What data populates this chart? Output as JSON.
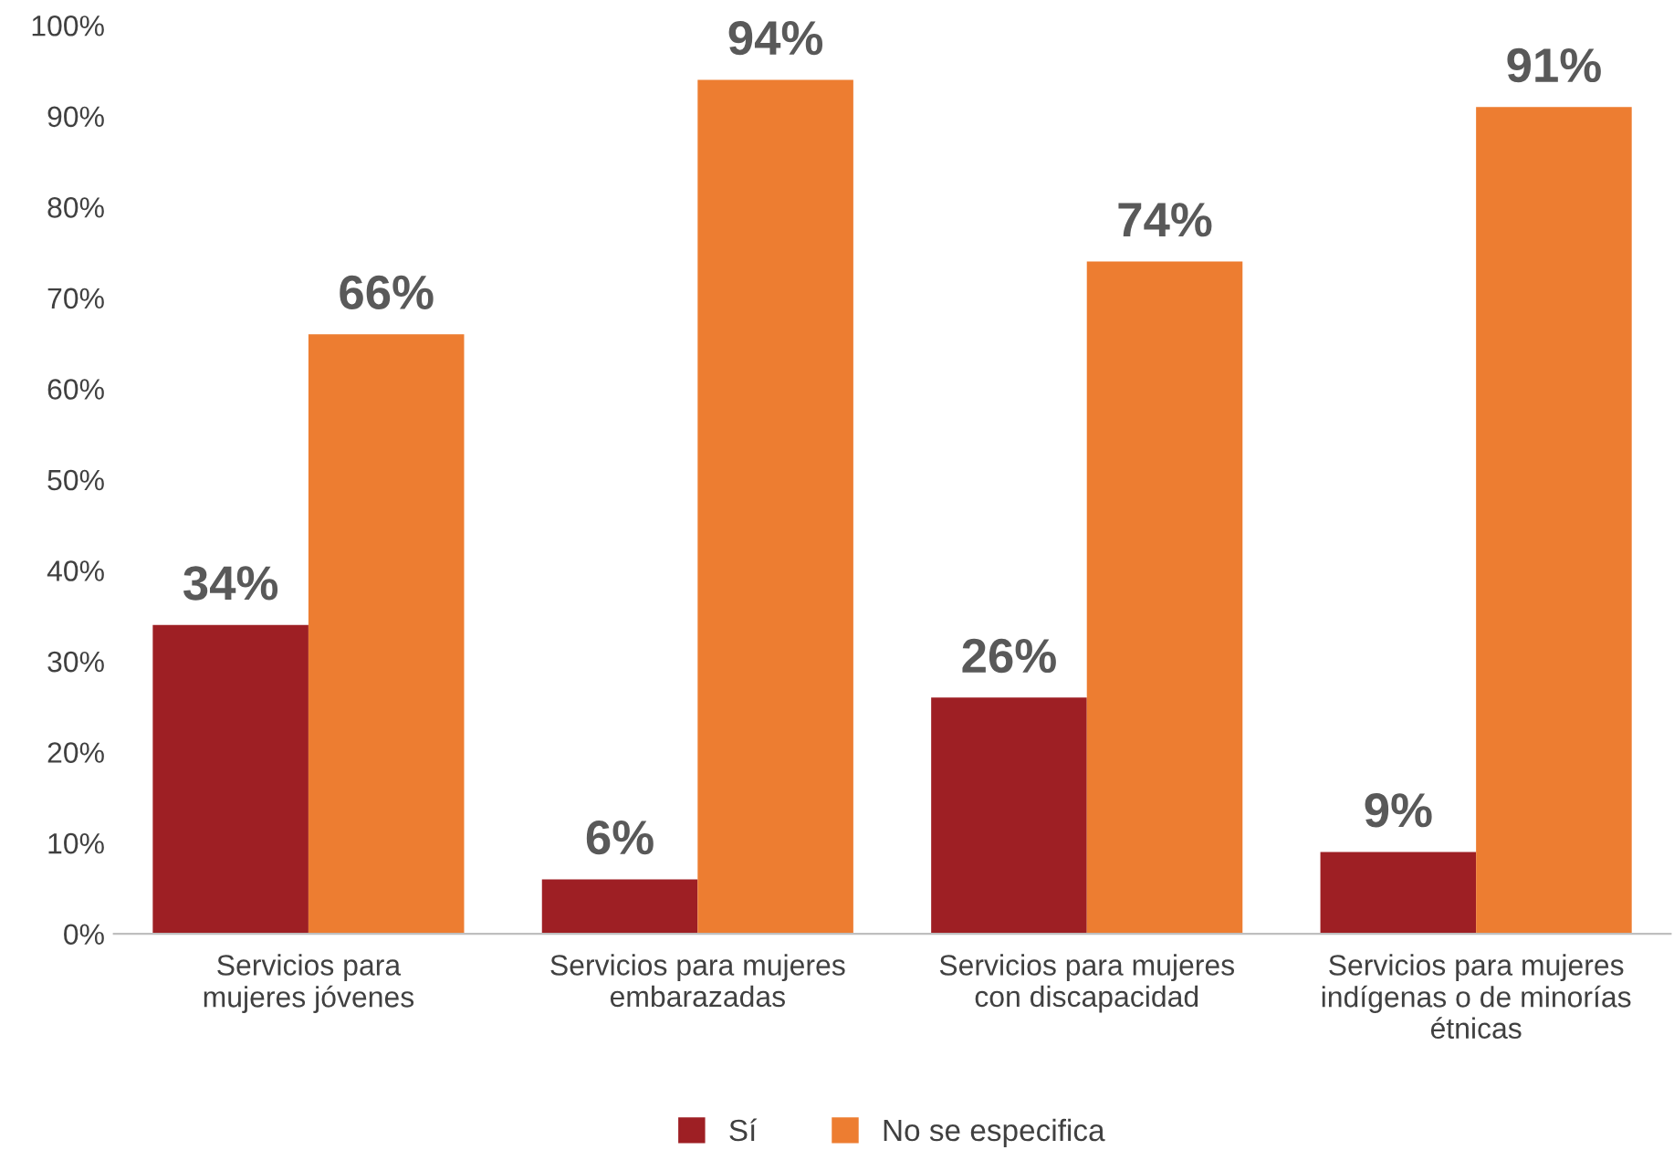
{
  "chart_data": {
    "type": "bar",
    "categories": [
      "Servicios para\nmujeres jóvenes",
      "Servicios para mujeres\nembarazadas",
      "Servicios para mujeres\ncon discapacidad",
      "Servicios para mujeres\nindígenas o de minorías\nétnicas"
    ],
    "series": [
      {
        "name": "Sí",
        "color": "#9e1f24",
        "values": [
          34,
          6,
          26,
          9
        ],
        "value_labels": [
          "34%",
          "6%",
          "26%",
          "9%"
        ]
      },
      {
        "name": "No se especifica",
        "color": "#ed7d31",
        "values": [
          66,
          94,
          74,
          91
        ],
        "value_labels": [
          "66%",
          "94%",
          "74%",
          "91%"
        ]
      }
    ],
    "ylim": [
      0,
      100
    ],
    "yticks": [
      {
        "value": 0,
        "label": "0%"
      },
      {
        "value": 10,
        "label": "10%"
      },
      {
        "value": 20,
        "label": "20%"
      },
      {
        "value": 30,
        "label": "30%"
      },
      {
        "value": 40,
        "label": "40%"
      },
      {
        "value": 50,
        "label": "50%"
      },
      {
        "value": 60,
        "label": "60%"
      },
      {
        "value": 70,
        "label": "70%"
      },
      {
        "value": 80,
        "label": "80%"
      },
      {
        "value": 90,
        "label": "90%"
      },
      {
        "value": 100,
        "label": "100%"
      }
    ],
    "grid": false,
    "legend": "bottom"
  }
}
